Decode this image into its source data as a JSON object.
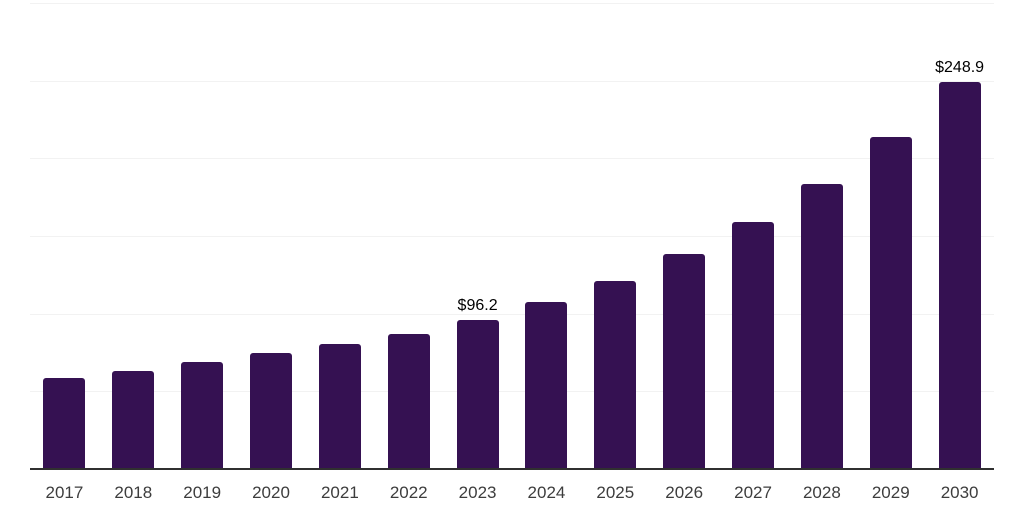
{
  "chart_data": {
    "type": "bar",
    "title": "",
    "xlabel": "",
    "ylabel": "",
    "categories": [
      "2017",
      "2018",
      "2019",
      "2020",
      "2021",
      "2022",
      "2023",
      "2024",
      "2025",
      "2026",
      "2027",
      "2028",
      "2029",
      "2030"
    ],
    "values": [
      58.3,
      63.2,
      69.2,
      74.8,
      80.4,
      87.0,
      96.2,
      107.7,
      121.0,
      138.6,
      159.1,
      183.7,
      213.7,
      248.9
    ],
    "value_prefix": "$",
    "labeled_points": [
      {
        "index": 6,
        "category": "2023",
        "label": "$96.2"
      },
      {
        "index": 13,
        "category": "2030",
        "label": "$248.9"
      }
    ],
    "ylim": [
      0,
      300
    ],
    "grid_step": 50,
    "grid": "horizontal",
    "legend_position": "none",
    "colors": {
      "bar": "#351152",
      "axis_line": "#303030",
      "gridline": "#f2f2f2",
      "x_tick_label": "#3d3d3d",
      "value_label": "#000000",
      "background": "#ffffff"
    }
  }
}
